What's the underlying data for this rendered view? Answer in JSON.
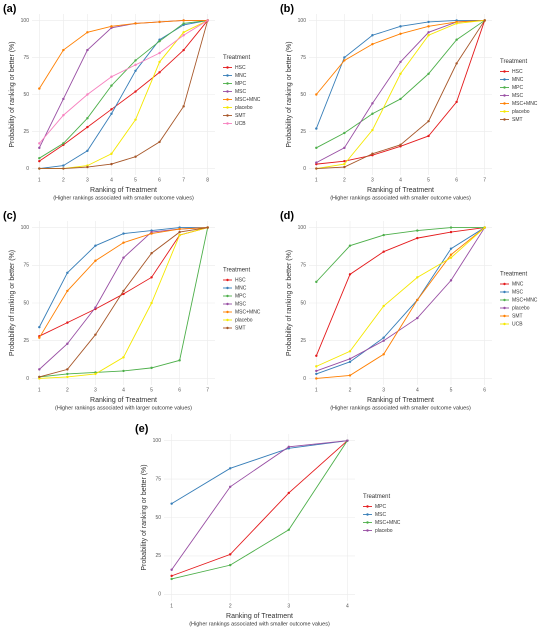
{
  "chart_data": [
    {
      "type": "line",
      "label": "(a)",
      "y_label": "Probability of ranking or better (%)",
      "x_label": "Ranking of Treatment",
      "subtitle": "(Higher rankings associated with smaller outcome values)",
      "legend_title": "Treatment",
      "x": [
        1,
        2,
        3,
        4,
        5,
        6,
        7,
        8
      ],
      "xlim": [
        1,
        8
      ],
      "xticks": [
        1,
        2,
        3,
        4,
        5,
        6,
        7,
        8
      ],
      "ylim": [
        0,
        100
      ],
      "yticks": [
        0,
        25,
        50,
        75,
        100
      ],
      "grid": true,
      "series": [
        {
          "name": "HSC",
          "color": "#e41a1c",
          "values": [
            5,
            16,
            28,
            40,
            52,
            65,
            80,
            100
          ]
        },
        {
          "name": "MNC",
          "color": "#377eb8",
          "values": [
            0,
            2,
            12,
            37,
            66,
            87,
            97,
            100
          ]
        },
        {
          "name": "MPC",
          "color": "#4daf4a",
          "values": [
            7,
            17,
            34,
            56,
            73,
            86,
            98,
            100
          ]
        },
        {
          "name": "MSC",
          "color": "#984ea3",
          "values": [
            14,
            47,
            80,
            95,
            98,
            99,
            100,
            100
          ]
        },
        {
          "name": "MSC+MNC",
          "color": "#ff7f00",
          "values": [
            54,
            80,
            92,
            96,
            98,
            99,
            100,
            100
          ]
        },
        {
          "name": "placebo",
          "color": "#f5e800",
          "values": [
            0,
            0,
            2,
            10,
            33,
            72,
            92,
            100
          ]
        },
        {
          "name": "SMT",
          "color": "#a65628",
          "values": [
            0,
            0,
            1,
            3,
            8,
            18,
            42,
            100
          ]
        },
        {
          "name": "UCB",
          "color": "#f781bf",
          "values": [
            17,
            36,
            50,
            62,
            70,
            78,
            90,
            100
          ]
        }
      ]
    },
    {
      "type": "line",
      "label": "(b)",
      "y_label": "Probability of ranking or better (%)",
      "x_label": "Ranking of Treatment",
      "subtitle": "(Higher rankings associated with smaller outcome values)",
      "legend_title": "Treatment",
      "x": [
        1,
        2,
        3,
        4,
        5,
        6,
        7
      ],
      "xlim": [
        1,
        7
      ],
      "xticks": [
        1,
        2,
        3,
        4,
        5,
        6,
        7
      ],
      "ylim": [
        0,
        100
      ],
      "yticks": [
        0,
        25,
        50,
        75,
        100
      ],
      "grid": true,
      "series": [
        {
          "name": "HSC",
          "color": "#e41a1c",
          "values": [
            3,
            5,
            9,
            15,
            22,
            45,
            100
          ]
        },
        {
          "name": "MNC",
          "color": "#377eb8",
          "values": [
            27,
            75,
            90,
            96,
            99,
            100,
            100
          ]
        },
        {
          "name": "MPC",
          "color": "#4daf4a",
          "values": [
            14,
            24,
            37,
            47,
            64,
            87,
            100
          ]
        },
        {
          "name": "MSC",
          "color": "#984ea3",
          "values": [
            4,
            14,
            44,
            72,
            92,
            99,
            100
          ]
        },
        {
          "name": "MSC+MNC",
          "color": "#ff7f00",
          "values": [
            50,
            73,
            84,
            91,
            96,
            99,
            100
          ]
        },
        {
          "name": "placebo",
          "color": "#f5e800",
          "values": [
            0,
            3,
            26,
            64,
            90,
            98,
            100
          ]
        },
        {
          "name": "SMT",
          "color": "#a65628",
          "values": [
            0,
            1,
            10,
            16,
            32,
            71,
            100
          ]
        }
      ]
    },
    {
      "type": "line",
      "label": "(c)",
      "y_label": "Probability of ranking or better (%)",
      "x_label": "Ranking of Treatment",
      "subtitle": "(Higher rankings associated with larger outcome values)",
      "legend_title": "Treatment",
      "x": [
        1,
        2,
        3,
        4,
        5,
        6,
        7
      ],
      "xlim": [
        1,
        7
      ],
      "xticks": [
        1,
        2,
        3,
        4,
        5,
        6,
        7
      ],
      "ylim": [
        0,
        100
      ],
      "yticks": [
        0,
        25,
        50,
        75,
        100
      ],
      "grid": true,
      "series": [
        {
          "name": "HSC",
          "color": "#e41a1c",
          "values": [
            28,
            37,
            46,
            56,
            67,
            95,
            100
          ]
        },
        {
          "name": "MNC",
          "color": "#377eb8",
          "values": [
            34,
            70,
            88,
            96,
            98,
            100,
            100
          ]
        },
        {
          "name": "MPC",
          "color": "#4daf4a",
          "values": [
            1,
            3,
            4,
            5,
            7,
            12,
            100
          ]
        },
        {
          "name": "MSC",
          "color": "#984ea3",
          "values": [
            6,
            23,
            47,
            80,
            97,
            99,
            100
          ]
        },
        {
          "name": "MSC+MNC",
          "color": "#ff7f00",
          "values": [
            27,
            58,
            78,
            90,
            96,
            99,
            100
          ]
        },
        {
          "name": "placebo",
          "color": "#f5e800",
          "values": [
            0,
            1,
            3,
            14,
            50,
            95,
            100
          ]
        },
        {
          "name": "SMT",
          "color": "#a65628",
          "values": [
            1,
            6,
            29,
            58,
            83,
            97,
            100
          ]
        }
      ]
    },
    {
      "type": "line",
      "label": "(d)",
      "y_label": "Probability of ranking or better (%)",
      "x_label": "Ranking of Treatment",
      "subtitle": "(Higher rankings associated with smaller outcome values)",
      "legend_title": "Treatment",
      "x": [
        1,
        2,
        3,
        4,
        5,
        6
      ],
      "xlim": [
        1,
        6
      ],
      "xticks": [
        1,
        2,
        3,
        4,
        5,
        6
      ],
      "ylim": [
        0,
        100
      ],
      "yticks": [
        0,
        25,
        50,
        75,
        100
      ],
      "grid": true,
      "series": [
        {
          "name": "MNC",
          "color": "#e41a1c",
          "values": [
            15,
            69,
            84,
            93,
            97,
            100
          ]
        },
        {
          "name": "MSC",
          "color": "#377eb8",
          "values": [
            3,
            11,
            27,
            52,
            86,
            100
          ]
        },
        {
          "name": "MSC+MNC",
          "color": "#4daf4a",
          "values": [
            64,
            88,
            95,
            98,
            100,
            100
          ]
        },
        {
          "name": "placebo",
          "color": "#984ea3",
          "values": [
            5,
            13,
            25,
            40,
            65,
            100
          ]
        },
        {
          "name": "SMT",
          "color": "#ff7f00",
          "values": [
            0,
            2,
            16,
            52,
            82,
            100
          ]
        },
        {
          "name": "UCB",
          "color": "#f5e800",
          "values": [
            8,
            18,
            48,
            67,
            80,
            100
          ]
        }
      ]
    },
    {
      "type": "line",
      "label": "(e)",
      "y_label": "Probability of ranking or better (%)",
      "x_label": "Ranking of Treatment",
      "subtitle": "(Higher rankings associated with smaller outcome values)",
      "legend_title": "Treatment",
      "x": [
        1,
        2,
        3,
        4
      ],
      "xlim": [
        1,
        4
      ],
      "xticks": [
        1,
        2,
        3,
        4
      ],
      "ylim": [
        0,
        100
      ],
      "yticks": [
        0,
        25,
        50,
        75,
        100
      ],
      "grid": true,
      "series": [
        {
          "name": "MPC",
          "color": "#e41a1c",
          "values": [
            12,
            26,
            66,
            100
          ]
        },
        {
          "name": "MSC",
          "color": "#377eb8",
          "values": [
            59,
            82,
            95,
            100
          ]
        },
        {
          "name": "MSC+MNC",
          "color": "#4daf4a",
          "values": [
            10,
            19,
            42,
            100
          ]
        },
        {
          "name": "placebo",
          "color": "#984ea3",
          "values": [
            16,
            70,
            96,
            100
          ]
        }
      ]
    }
  ]
}
